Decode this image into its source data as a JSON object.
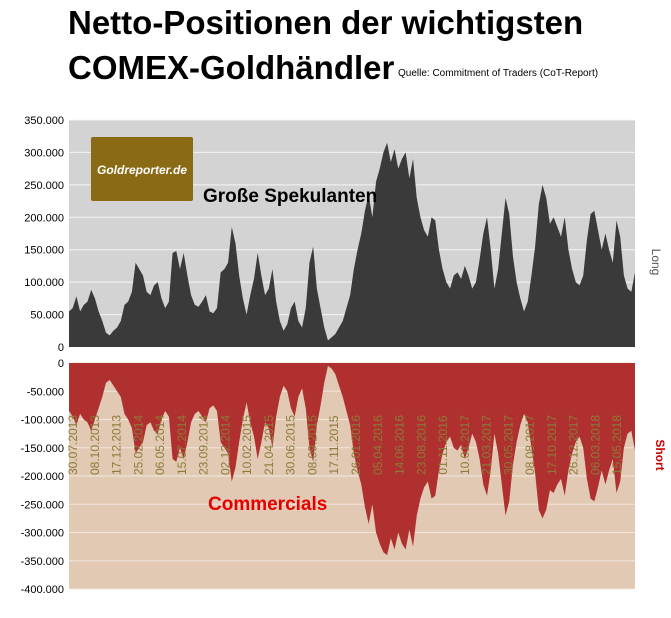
{
  "title_line1": "Netto-Positionen der wichtigsten",
  "title_line2": "COMEX-Goldhändler",
  "source": "Quelle: Commitment of Traders (CoT-Report)",
  "logo_text": "Goldreporter.de",
  "colors": {
    "upper_bg": "#d3d3d3",
    "lower_bg": "#e2c9b4",
    "long_fill": "#3a3a3a",
    "short_fill": "#b03030",
    "commercials_label": "#e60000",
    "date_label": "#8b7b3a",
    "logo_bg": "#8a6a14"
  },
  "chart_data": [
    {
      "type": "area",
      "series_label": "Große Spekulanten",
      "side_label": "Long",
      "ylim": [
        0,
        350000
      ],
      "yticks": [
        "0",
        "50.000",
        "100.000",
        "150.000",
        "200.000",
        "250.000",
        "300.000",
        "350.000"
      ],
      "values": [
        55000,
        60000,
        78000,
        55000,
        65000,
        70000,
        88000,
        75000,
        55000,
        40000,
        22000,
        18000,
        25000,
        30000,
        40000,
        65000,
        70000,
        85000,
        130000,
        120000,
        110000,
        85000,
        80000,
        95000,
        100000,
        75000,
        60000,
        70000,
        145000,
        148000,
        120000,
        145000,
        110000,
        80000,
        65000,
        62000,
        70000,
        80000,
        55000,
        52000,
        60000,
        115000,
        120000,
        130000,
        185000,
        160000,
        110000,
        75000,
        50000,
        80000,
        105000,
        145000,
        110000,
        80000,
        90000,
        120000,
        70000,
        40000,
        25000,
        35000,
        60000,
        70000,
        40000,
        30000,
        60000,
        130000,
        155000,
        90000,
        60000,
        30000,
        10000,
        15000,
        20000,
        30000,
        40000,
        60000,
        80000,
        120000,
        150000,
        175000,
        210000,
        235000,
        200000,
        255000,
        275000,
        300000,
        315000,
        285000,
        305000,
        275000,
        290000,
        300000,
        260000,
        290000,
        230000,
        200000,
        180000,
        170000,
        200000,
        195000,
        150000,
        120000,
        100000,
        90000,
        110000,
        115000,
        105000,
        125000,
        110000,
        90000,
        100000,
        135000,
        175000,
        200000,
        150000,
        90000,
        120000,
        175000,
        230000,
        205000,
        140000,
        100000,
        75000,
        55000,
        70000,
        110000,
        155000,
        220000,
        250000,
        230000,
        190000,
        200000,
        185000,
        170000,
        200000,
        150000,
        120000,
        100000,
        95000,
        110000,
        165000,
        205000,
        210000,
        180000,
        150000,
        175000,
        150000,
        130000,
        195000,
        170000,
        110000,
        90000,
        85000,
        115000
      ]
    },
    {
      "type": "area",
      "series_label": "Commercials",
      "side_label": "Short",
      "ylim": [
        -400000,
        0
      ],
      "yticks": [
        "-400.000",
        "-350.000",
        "-300.000",
        "-250.000",
        "-200.000",
        "-150.000",
        "-100.000",
        "-50.000",
        "0"
      ],
      "x_tick_labels": [
        "30.07.2013",
        "08.10.2013",
        "17.12.2013",
        "25.02.2014",
        "06.05.2014",
        "15.07.2014",
        "23.09.2014",
        "02.12.2014",
        "10.02.2015",
        "21.04.2015",
        "30.06.2015",
        "08.09.2015",
        "17.11.2015",
        "26.01.2016",
        "05.04.2016",
        "14.06.2016",
        "23.08.2016",
        "01.11.2016",
        "10.01.2017",
        "21.03.2017",
        "30.05.2017",
        "08.08.2017",
        "17.10.2017",
        "26.12.2017",
        "06.03.2018",
        "15.05.2018"
      ],
      "values": [
        -85000,
        -95000,
        -110000,
        -90000,
        -100000,
        -105000,
        -120000,
        -100000,
        -80000,
        -60000,
        -35000,
        -30000,
        -40000,
        -50000,
        -60000,
        -90000,
        -100000,
        -115000,
        -160000,
        -150000,
        -140000,
        -110000,
        -105000,
        -120000,
        -125000,
        -100000,
        -85000,
        -95000,
        -170000,
        -175000,
        -150000,
        -170000,
        -140000,
        -105000,
        -90000,
        -85000,
        -95000,
        -105000,
        -80000,
        -75000,
        -85000,
        -140000,
        -150000,
        -160000,
        -210000,
        -185000,
        -140000,
        -100000,
        -70000,
        -105000,
        -130000,
        -170000,
        -140000,
        -105000,
        -115000,
        -150000,
        -95000,
        -60000,
        -40000,
        -50000,
        -80000,
        -95000,
        -60000,
        -45000,
        -80000,
        -150000,
        -175000,
        -110000,
        -75000,
        -35000,
        -5000,
        -10000,
        -20000,
        -40000,
        -60000,
        -85000,
        -110000,
        -160000,
        -190000,
        -215000,
        -255000,
        -285000,
        -250000,
        -300000,
        -320000,
        -335000,
        -340000,
        -310000,
        -330000,
        -300000,
        -320000,
        -330000,
        -295000,
        -325000,
        -270000,
        -240000,
        -220000,
        -210000,
        -240000,
        -235000,
        -190000,
        -160000,
        -140000,
        -130000,
        -150000,
        -155000,
        -145000,
        -170000,
        -150000,
        -125000,
        -140000,
        -170000,
        -215000,
        -235000,
        -190000,
        -125000,
        -160000,
        -215000,
        -270000,
        -245000,
        -180000,
        -140000,
        -110000,
        -90000,
        -105000,
        -150000,
        -195000,
        -260000,
        -275000,
        -260000,
        -225000,
        -230000,
        -215000,
        -205000,
        -235000,
        -190000,
        -160000,
        -140000,
        -130000,
        -150000,
        -205000,
        -240000,
        -245000,
        -220000,
        -190000,
        -215000,
        -190000,
        -170000,
        -230000,
        -210000,
        -150000,
        -125000,
        -120000,
        -155000
      ]
    }
  ]
}
